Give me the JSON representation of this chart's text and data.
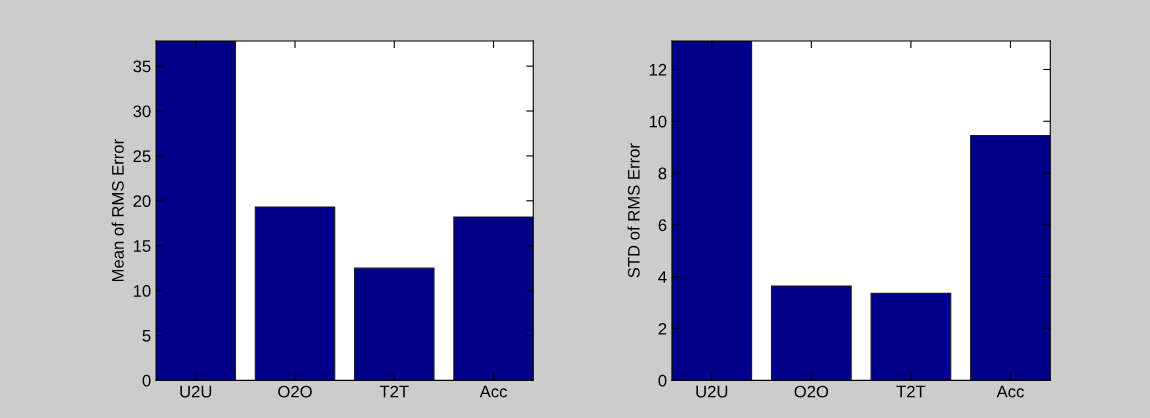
{
  "chart_data": [
    {
      "type": "bar",
      "categories": [
        "U2U",
        "O2O",
        "T2T",
        "Acc"
      ],
      "values": [
        37.8,
        19.3,
        12.5,
        18.2
      ],
      "color": "#00008b",
      "ylabel": "Mean of RMS Error",
      "ylim": [
        0,
        37.8
      ],
      "yticks": [
        0,
        5,
        10,
        15,
        20,
        25,
        30,
        35
      ],
      "grid": false
    },
    {
      "type": "bar",
      "categories": [
        "U2U",
        "O2O",
        "T2T",
        "Acc"
      ],
      "values": [
        13.1,
        3.64,
        3.36,
        9.45
      ],
      "color": "#00008b",
      "ylabel": "STD of RMS Error",
      "ylim": [
        0,
        13.1
      ],
      "yticks": [
        0,
        2,
        4,
        6,
        8,
        10,
        12
      ],
      "grid": false
    }
  ]
}
